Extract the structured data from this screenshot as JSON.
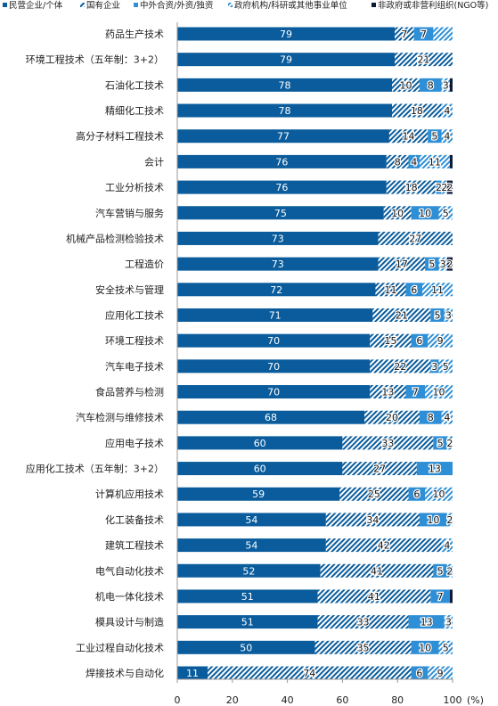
{
  "chart_data": {
    "type": "bar",
    "orientation": "horizontal",
    "stacked": true,
    "categories": [
      "药品生产技术",
      "环境工程技术（五年制：3+2）",
      "石油化工技术",
      "精细化工技术",
      "高分子材料工程技术",
      "会计",
      "工业分析技术",
      "汽车营销与服务",
      "机械产品检测检验技术",
      "工程造价",
      "安全技术与管理",
      "应用化工技术",
      "环境工程技术",
      "汽车电子技术",
      "食品营养与检测",
      "汽车检测与维修技术",
      "应用电子技术",
      "应用化工技术（五年制：3+2）",
      "计算机应用技术",
      "化工装备技术",
      "建筑工程技术",
      "电气自动化技术",
      "机电一体化技术",
      "模具设计与制造",
      "工业过程自动化技术",
      "焊接技术与自动化"
    ],
    "series": [
      {
        "name": "民营企业/个体",
        "color": "#0a5c9c",
        "pattern": "solid",
        "values": [
          79,
          79,
          78,
          78,
          77,
          76,
          76,
          75,
          73,
          73,
          72,
          71,
          70,
          70,
          70,
          68,
          60,
          60,
          59,
          54,
          54,
          52,
          51,
          51,
          50,
          11
        ]
      },
      {
        "name": "国有企业",
        "color": "#0a5c9c",
        "pattern": "hatch",
        "values": [
          7,
          21,
          10,
          18,
          14,
          8,
          18,
          10,
          27,
          17,
          11,
          21,
          15,
          22,
          13,
          20,
          33,
          27,
          25,
          34,
          42,
          41,
          41,
          33,
          35,
          74
        ]
      },
      {
        "name": "中外合资/外资/独资",
        "color": "#2e8fd6",
        "pattern": "solid",
        "values": [
          7,
          0,
          8,
          0,
          5,
          4,
          2,
          10,
          0,
          5,
          6,
          5,
          6,
          3,
          7,
          8,
          5,
          13,
          6,
          10,
          0,
          5,
          7,
          13,
          10,
          6
        ]
      },
      {
        "name": "政府机构/科研或其他事业单位",
        "color": "#2e8fd6",
        "pattern": "hatch",
        "values": [
          7,
          0,
          3,
          4,
          4,
          11,
          2,
          5,
          0,
          3,
          11,
          3,
          9,
          5,
          10,
          4,
          2,
          0,
          10,
          2,
          4,
          2,
          0,
          3,
          5,
          9
        ]
      },
      {
        "name": "非政府或非营利组织(NGO等)",
        "color": "#0d1a3a",
        "pattern": "solid",
        "values": [
          0,
          0,
          1,
          0,
          0,
          1,
          2,
          0,
          0,
          2,
          0,
          0,
          0,
          0,
          0,
          0,
          0,
          0,
          0,
          0,
          0,
          0,
          1,
          0,
          0,
          0
        ]
      }
    ],
    "value_labels": [
      [
        "79",
        "7",
        "7"
      ],
      [
        "79",
        "21"
      ],
      [
        "78",
        "10",
        "8",
        "3"
      ],
      [
        "78",
        "18",
        "4"
      ],
      [
        "77",
        "14",
        "5",
        "4"
      ],
      [
        "76",
        "8",
        "4",
        "11"
      ],
      [
        "76",
        "18",
        "2",
        "2",
        "2"
      ],
      [
        "75",
        "10",
        "10",
        "5"
      ],
      [
        "73",
        "27"
      ],
      [
        "73",
        "17",
        "5",
        "3",
        "2"
      ],
      [
        "72",
        "11",
        "6",
        "11"
      ],
      [
        "71",
        "21",
        "5",
        "3"
      ],
      [
        "70",
        "15",
        "6",
        "9"
      ],
      [
        "70",
        "22",
        "3",
        "5"
      ],
      [
        "70",
        "13",
        "7",
        "10"
      ],
      [
        "68",
        "20",
        "8",
        "4"
      ],
      [
        "60",
        "33",
        "5",
        "2"
      ],
      [
        "60",
        "27",
        "13"
      ],
      [
        "59",
        "25",
        "6",
        "10"
      ],
      [
        "54",
        "34",
        "10",
        "2"
      ],
      [
        "54",
        "42",
        "4"
      ],
      [
        "52",
        "41",
        "5",
        "2"
      ],
      [
        "51",
        "41",
        "7"
      ],
      [
        "51",
        "33",
        "13",
        "3"
      ],
      [
        "50",
        "35",
        "10",
        "5"
      ],
      [
        "11",
        "74",
        "6",
        "9"
      ]
    ],
    "x_ticks": [
      "0",
      "20",
      "40",
      "60",
      "80",
      "100"
    ],
    "x_unit": "(%)",
    "xlim": [
      0,
      100
    ],
    "legend_position": "top",
    "grid": false
  }
}
